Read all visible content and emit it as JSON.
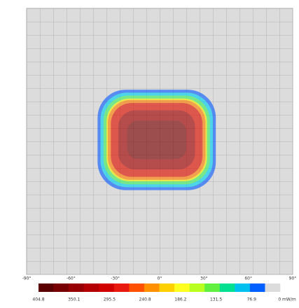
{
  "chart_data": {
    "type": "contour",
    "xlim": [
      -90,
      90
    ],
    "ylim": [
      -90,
      90
    ],
    "xticks": [
      {
        "value": -90,
        "label": "-90°"
      },
      {
        "value": -60,
        "label": "-60°"
      },
      {
        "value": -30,
        "label": "-30°"
      },
      {
        "value": 0,
        "label": "0°"
      },
      {
        "value": 30,
        "label": "30°"
      },
      {
        "value": 60,
        "label": "60°"
      },
      {
        "value": 90,
        "label": "90°"
      }
    ],
    "contours": [
      {
        "level": 20,
        "color": "#1060ff",
        "x": [
          -42,
          38
        ],
        "y": [
          -33,
          35
        ]
      },
      {
        "level": 50,
        "color": "#00d0f0",
        "x": [
          -40,
          36
        ],
        "y": [
          -31,
          33
        ]
      },
      {
        "level": 90,
        "color": "#40f060",
        "x": [
          -38,
          34
        ],
        "y": [
          -29,
          31
        ]
      },
      {
        "level": 130,
        "color": "#f0f000",
        "x": [
          -36,
          32
        ],
        "y": [
          -27,
          29
        ]
      },
      {
        "level": 180,
        "color": "#ff8000",
        "x": [
          -35,
          31
        ],
        "y": [
          -26,
          28
        ]
      },
      {
        "level": 240,
        "color": "#e01000",
        "x": [
          -33,
          29
        ],
        "y": [
          -24,
          26
        ]
      },
      {
        "level": 330,
        "color": "#a00000",
        "x": [
          -28,
          24
        ],
        "y": [
          -19,
          21
        ]
      },
      {
        "level": 390,
        "color": "#7a0000",
        "x": [
          -22,
          18
        ],
        "y": [
          -12,
          14
        ]
      }
    ],
    "colorbar": {
      "colors": [
        "#5a0000",
        "#780000",
        "#960000",
        "#b40000",
        "#d00000",
        "#e81a10",
        "#ff5000",
        "#ff9000",
        "#ffd000",
        "#ffff20",
        "#b8ff20",
        "#60f040",
        "#00e090",
        "#00c0f0",
        "#0060ff",
        "#dcdcdc"
      ],
      "ticks": [
        404.8,
        350.1,
        295.5,
        240.8,
        186.2,
        131.5,
        76.9,
        {
          "value": 0,
          "label": "0 mW/m"
        }
      ]
    }
  }
}
